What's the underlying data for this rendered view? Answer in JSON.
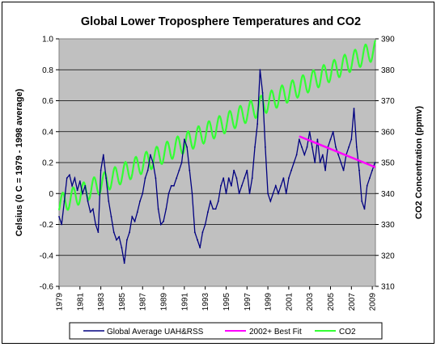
{
  "chart_data": {
    "type": "line",
    "title": "Global Lower Troposphere  Temperatures  and CO2",
    "ylabel_left": "Celsius (0 C = 1979 - 1998 average)",
    "ylabel_right": "CO2 Concentration (ppmv)",
    "xlabel": "",
    "x_tick_labels": [
      "1979",
      "1981",
      "1983",
      "1985",
      "1987",
      "1989",
      "1991",
      "1993",
      "1995",
      "1997",
      "1999",
      "2001",
      "2003",
      "2005",
      "2007",
      "2009"
    ],
    "ylim_left": [
      -0.6,
      1.0
    ],
    "y_left_tick_labels": [
      "-0.6",
      "-0.4",
      "-0.2",
      "0",
      "0.2",
      "0.4",
      "0.6",
      "0.8",
      "1.0"
    ],
    "ylim_right": [
      310,
      390
    ],
    "y_right_tick_labels": [
      "310",
      "320",
      "330",
      "340",
      "350",
      "360",
      "370",
      "380",
      "390"
    ],
    "xlim": [
      1979.0,
      2009.3
    ],
    "grid": true,
    "legend_position": "bottom",
    "colors": {
      "temperature": "#000080",
      "fit": "#ff00ff",
      "co2": "#33ff33",
      "plot_bg": "#c0c0c0"
    },
    "series": [
      {
        "name": "Global Average UAH&RSS",
        "axis": "left",
        "x": [
          1979.0,
          1979.25,
          1979.5,
          1979.75,
          1980.0,
          1980.25,
          1980.5,
          1980.75,
          1981.0,
          1981.25,
          1981.5,
          1981.75,
          1982.0,
          1982.25,
          1982.5,
          1982.75,
          1983.0,
          1983.25,
          1983.5,
          1983.75,
          1984.0,
          1984.25,
          1984.5,
          1984.75,
          1985.0,
          1985.25,
          1985.5,
          1985.75,
          1986.0,
          1986.25,
          1986.5,
          1986.75,
          1987.0,
          1987.25,
          1987.5,
          1987.75,
          1988.0,
          1988.25,
          1988.5,
          1988.75,
          1989.0,
          1989.25,
          1989.5,
          1989.75,
          1990.0,
          1990.25,
          1990.5,
          1990.75,
          1991.0,
          1991.25,
          1991.5,
          1991.75,
          1992.0,
          1992.25,
          1992.5,
          1992.75,
          1993.0,
          1993.25,
          1993.5,
          1993.75,
          1994.0,
          1994.25,
          1994.5,
          1994.75,
          1995.0,
          1995.25,
          1995.5,
          1995.75,
          1996.0,
          1996.25,
          1996.5,
          1996.75,
          1997.0,
          1997.25,
          1997.5,
          1997.75,
          1998.0,
          1998.25,
          1998.5,
          1998.75,
          1999.0,
          1999.25,
          1999.5,
          1999.75,
          2000.0,
          2000.25,
          2000.5,
          2000.75,
          2001.0,
          2001.25,
          2001.5,
          2001.75,
          2002.0,
          2002.25,
          2002.5,
          2002.75,
          2003.0,
          2003.25,
          2003.5,
          2003.75,
          2004.0,
          2004.25,
          2004.5,
          2004.75,
          2005.0,
          2005.25,
          2005.5,
          2005.75,
          2006.0,
          2006.25,
          2006.5,
          2006.75,
          2007.0,
          2007.25,
          2007.5,
          2007.75,
          2008.0,
          2008.25,
          2008.5,
          2008.75,
          2009.0,
          2009.25
        ],
        "values": [
          -0.15,
          -0.2,
          -0.05,
          0.1,
          0.12,
          0.05,
          0.1,
          0.02,
          0.08,
          0.0,
          0.05,
          -0.05,
          -0.12,
          -0.1,
          -0.2,
          -0.25,
          0.15,
          0.25,
          0.1,
          -0.05,
          -0.15,
          -0.25,
          -0.3,
          -0.28,
          -0.35,
          -0.45,
          -0.3,
          -0.25,
          -0.15,
          -0.18,
          -0.12,
          -0.05,
          0.0,
          0.1,
          0.15,
          0.25,
          0.2,
          0.1,
          -0.1,
          -0.2,
          -0.18,
          -0.1,
          0.0,
          0.05,
          0.05,
          0.1,
          0.15,
          0.2,
          0.35,
          0.3,
          0.15,
          0.0,
          -0.25,
          -0.3,
          -0.35,
          -0.25,
          -0.2,
          -0.12,
          -0.05,
          -0.1,
          -0.1,
          -0.05,
          0.05,
          0.1,
          0.0,
          0.1,
          0.05,
          0.15,
          0.1,
          0.0,
          0.05,
          0.1,
          0.15,
          0.0,
          0.1,
          0.3,
          0.45,
          0.8,
          0.65,
          0.3,
          0.0,
          -0.05,
          0.0,
          0.05,
          0.0,
          0.05,
          0.1,
          0.0,
          0.1,
          0.15,
          0.2,
          0.25,
          0.35,
          0.3,
          0.25,
          0.3,
          0.4,
          0.3,
          0.2,
          0.35,
          0.2,
          0.25,
          0.15,
          0.3,
          0.35,
          0.4,
          0.3,
          0.25,
          0.2,
          0.15,
          0.25,
          0.3,
          0.35,
          0.55,
          0.3,
          0.15,
          -0.05,
          -0.1,
          0.05,
          0.1,
          0.15,
          0.2
        ]
      },
      {
        "name": "2002+ Best Fit",
        "axis": "left",
        "x": [
          2002.0,
          2009.3
        ],
        "values": [
          0.37,
          0.17
        ]
      },
      {
        "name": "CO2",
        "axis": "right",
        "x": [
          1979.0,
          2009.3
        ],
        "values": [
          336.5,
          386.5
        ],
        "seasonal_amplitude": 3.2
      }
    ]
  }
}
